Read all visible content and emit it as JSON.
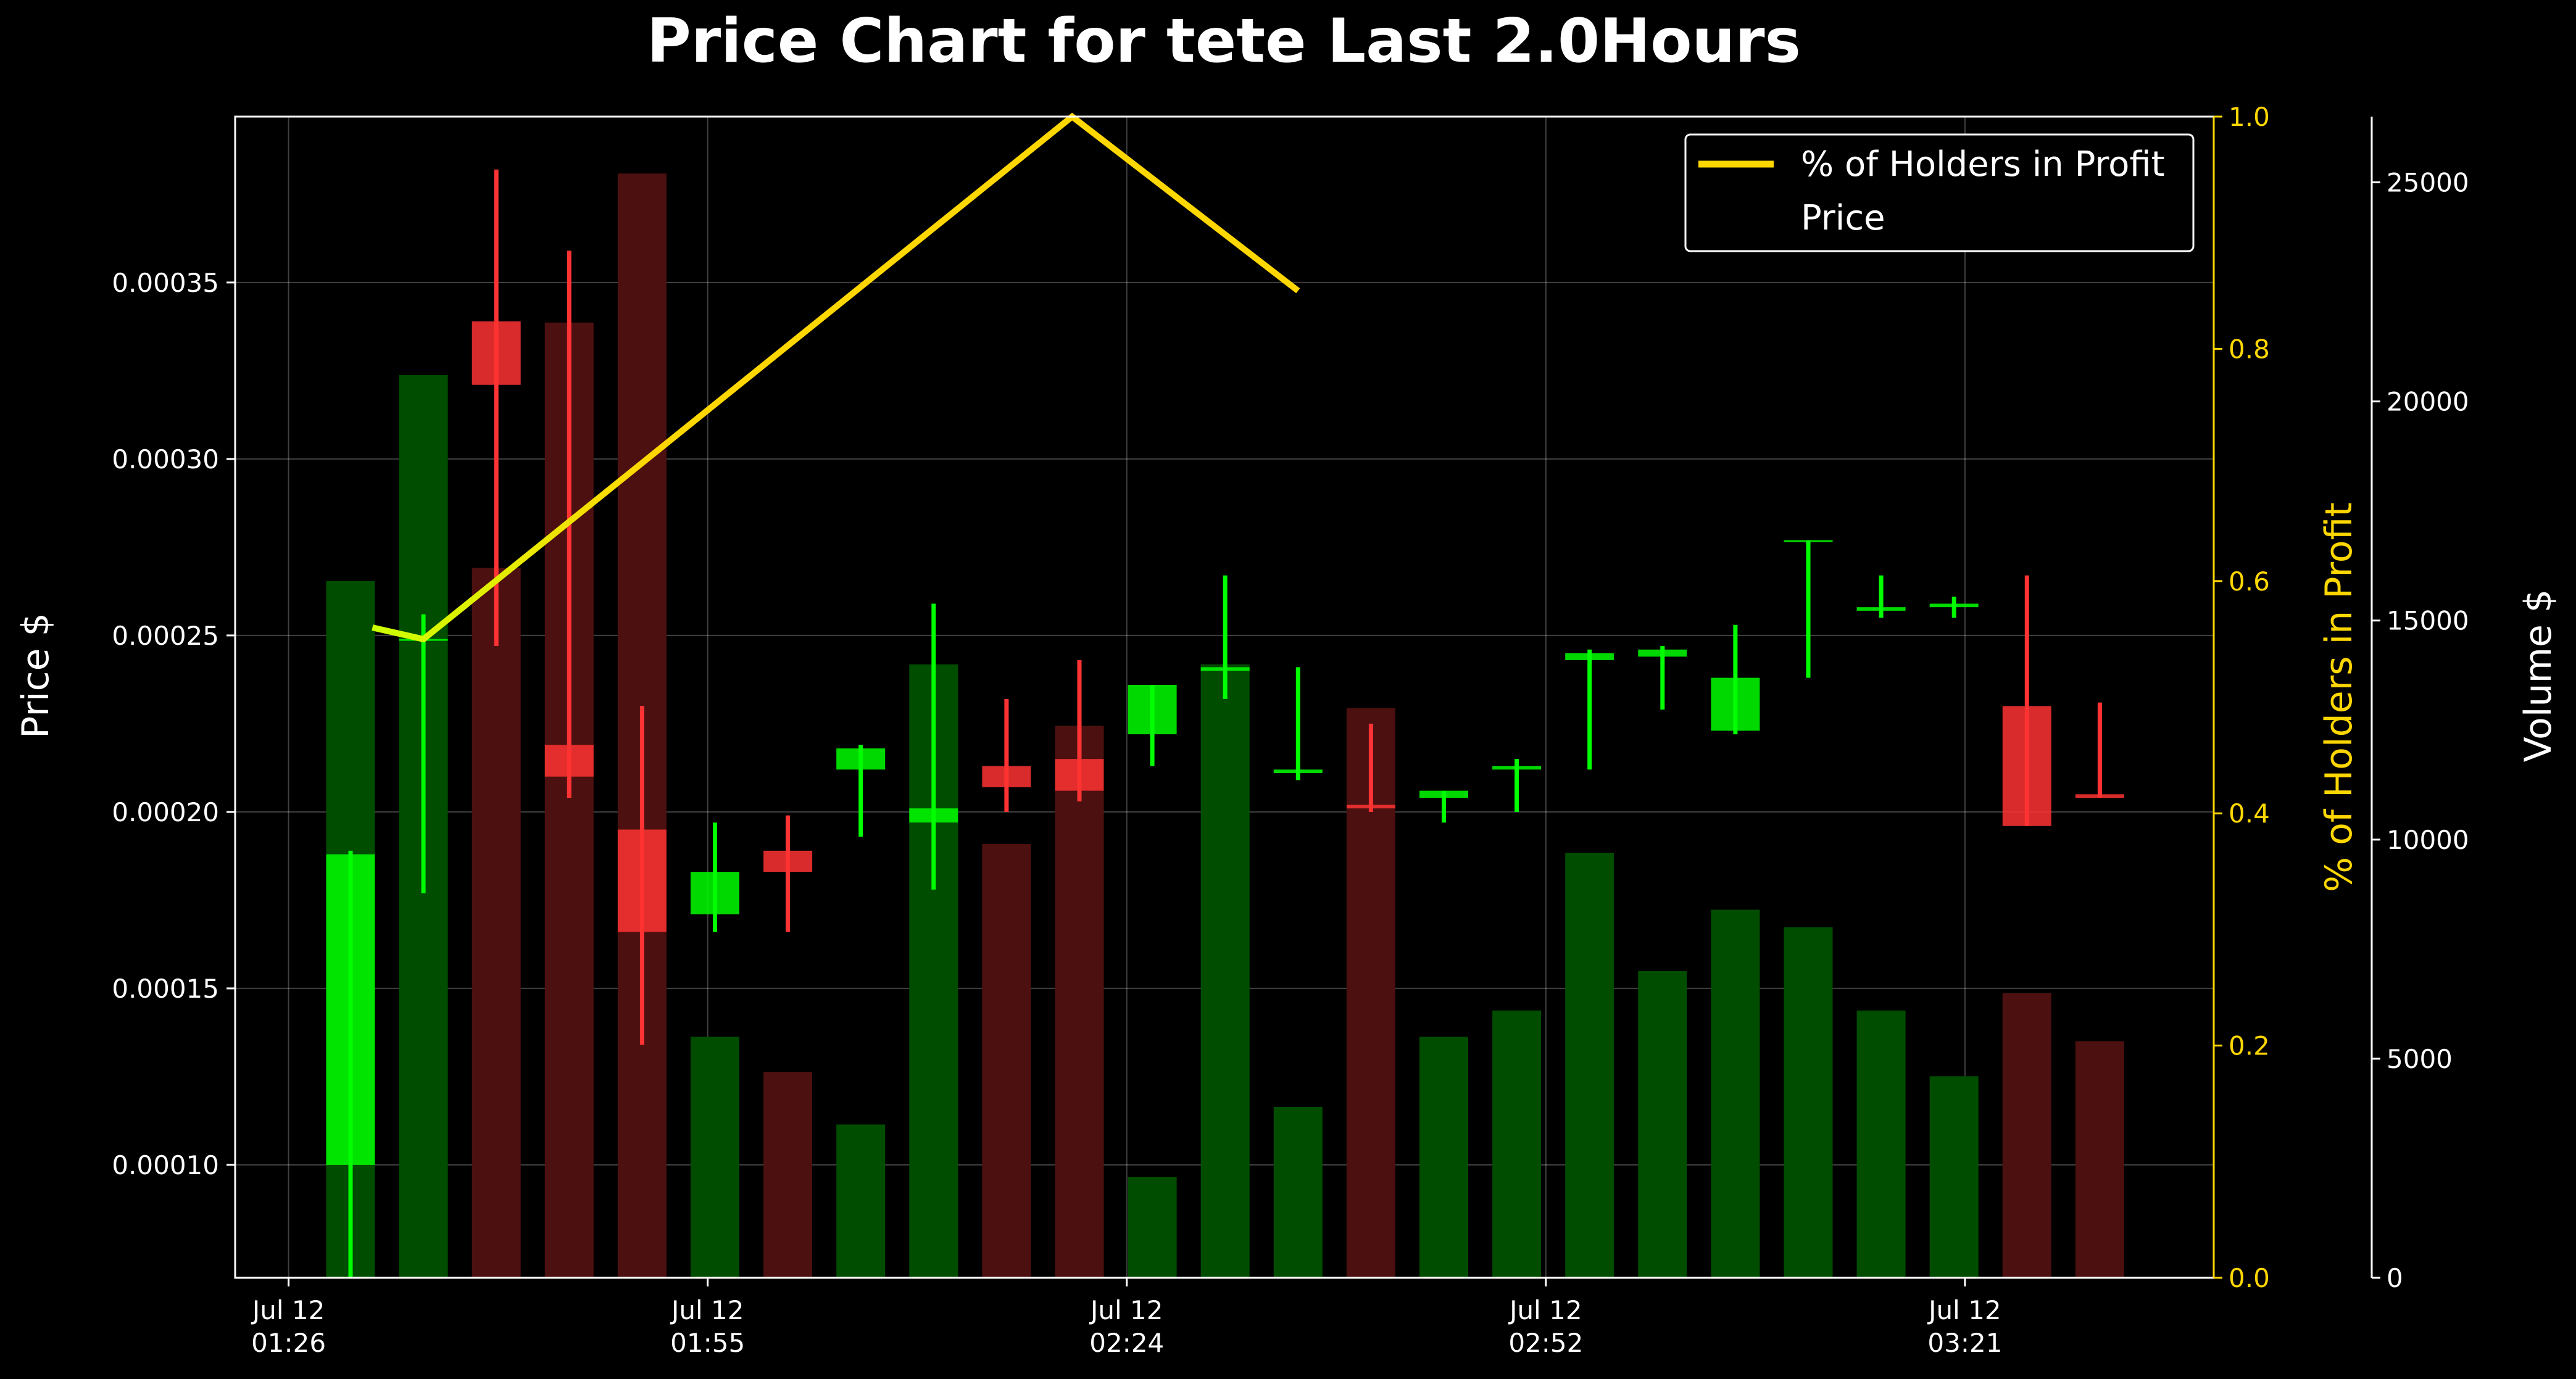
{
  "chart_data": {
    "type": "candlestick",
    "title": "Price Chart for tete Last 2.0Hours",
    "ylabel": "Price $",
    "y2label": "% of Holders in Profit",
    "y3label": "Volume $",
    "ylim": [
      6.8e-05,
      0.000397
    ],
    "y2lim": [
      0,
      1
    ],
    "y3lim": [
      0,
      26500
    ],
    "yticks": [
      "0.00010",
      "0.00015",
      "0.00020",
      "0.00025",
      "0.00030",
      "0.00035"
    ],
    "y2ticks": [
      "0.0",
      "0.2",
      "0.4",
      "0.6",
      "0.8",
      "1.0"
    ],
    "y3ticks": [
      "0",
      "5000",
      "10000",
      "15000",
      "20000",
      "25000"
    ],
    "xticks": [
      {
        "line1": "Jul 12",
        "line2": "01:26"
      },
      {
        "line1": "Jul 12",
        "line2": "01:55"
      },
      {
        "line1": "Jul 12",
        "line2": "02:24"
      },
      {
        "line1": "Jul 12",
        "line2": "02:52"
      },
      {
        "line1": "Jul 12",
        "line2": "03:21"
      }
    ],
    "legend": [
      "% of Holders in Profit",
      "Price"
    ],
    "legend_position": "top-right",
    "grid": true,
    "colors": {
      "up": "#00ff00",
      "down": "#ff3333",
      "volume_up": "#004d00",
      "volume_down": "#4d1010",
      "profit_line": "#FFD700",
      "background": "#000000"
    },
    "candles": [
      {
        "o": 0.0001,
        "h": 0.000189,
        "l": 6.6e-05,
        "c": 0.000188,
        "vol": 15900
      },
      {
        "o": 0.000249,
        "h": 0.000256,
        "l": 0.000177,
        "c": 0.000249,
        "vol": 20600
      },
      {
        "o": 0.000339,
        "h": 0.000382,
        "l": 0.000247,
        "c": 0.000321,
        "vol": 16200
      },
      {
        "o": 0.000219,
        "h": 0.000359,
        "l": 0.000204,
        "c": 0.00021,
        "vol": 21800
      },
      {
        "o": 0.000195,
        "h": 0.00023,
        "l": 0.000134,
        "c": 0.000166,
        "vol": 25200
      },
      {
        "o": 0.000171,
        "h": 0.000197,
        "l": 0.000166,
        "c": 0.000183,
        "vol": 5500
      },
      {
        "o": 0.000189,
        "h": 0.000199,
        "l": 0.000166,
        "c": 0.000183,
        "vol": 4700
      },
      {
        "o": 0.000212,
        "h": 0.000219,
        "l": 0.000193,
        "c": 0.000218,
        "vol": 3500
      },
      {
        "o": 0.000197,
        "h": 0.000259,
        "l": 0.000178,
        "c": 0.000201,
        "vol": 14000
      },
      {
        "o": 0.000213,
        "h": 0.000232,
        "l": 0.0002,
        "c": 0.000207,
        "vol": 9900
      },
      {
        "o": 0.000215,
        "h": 0.000243,
        "l": 0.000203,
        "c": 0.000206,
        "vol": 12600
      },
      {
        "o": 0.000222,
        "h": 0.000236,
        "l": 0.000213,
        "c": 0.000236,
        "vol": 2300
      },
      {
        "o": 0.00024,
        "h": 0.000267,
        "l": 0.000232,
        "c": 0.000241,
        "vol": 14000
      },
      {
        "o": 0.000211,
        "h": 0.000241,
        "l": 0.000209,
        "c": 0.000212,
        "vol": 3900
      },
      {
        "o": 0.000202,
        "h": 0.000225,
        "l": 0.0002,
        "c": 0.000201,
        "vol": 13000
      },
      {
        "o": 0.000204,
        "h": 0.000206,
        "l": 0.000197,
        "c": 0.000206,
        "vol": 5500
      },
      {
        "o": 0.000212,
        "h": 0.000215,
        "l": 0.0002,
        "c": 0.000213,
        "vol": 6100
      },
      {
        "o": 0.000243,
        "h": 0.000246,
        "l": 0.000212,
        "c": 0.000245,
        "vol": 9700
      },
      {
        "o": 0.000244,
        "h": 0.000247,
        "l": 0.000229,
        "c": 0.000246,
        "vol": 7000
      },
      {
        "o": 0.000223,
        "h": 0.000253,
        "l": 0.000222,
        "c": 0.000238,
        "vol": 8400
      },
      {
        "o": 0.000277,
        "h": 0.000277,
        "l": 0.000238,
        "c": 0.000277,
        "vol": 8000
      },
      {
        "o": 0.000257,
        "h": 0.000267,
        "l": 0.000255,
        "c": 0.000258,
        "vol": 6100
      },
      {
        "o": 0.000258,
        "h": 0.000261,
        "l": 0.000255,
        "c": 0.000259,
        "vol": 4600
      },
      {
        "o": 0.00023,
        "h": 0.000267,
        "l": 0.000196,
        "c": 0.000196,
        "vol": 6500
      },
      {
        "o": 0.000205,
        "h": 0.000231,
        "l": 0.000204,
        "c": 0.000204,
        "vol": 5400
      }
    ],
    "profit_series": [
      {
        "x": 0.3,
        "y": 0.56
      },
      {
        "x": 1.0,
        "y": 0.55
      },
      {
        "x": 9.9,
        "y": 1.0
      },
      {
        "x": 13.0,
        "y": 0.85
      }
    ]
  }
}
